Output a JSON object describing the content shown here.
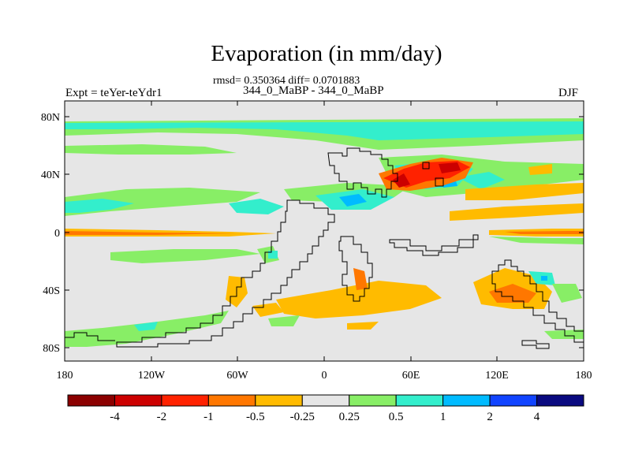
{
  "map": {
    "title": "Evaporation (in mm/day)",
    "rmsd_text": "rmsd= 0.350364 diff= 0.0701883",
    "subtitle": "344_0_MaBP - 344_0_MaBP",
    "left_label": "Expt = teYer-teYdr1",
    "season": "DJF",
    "y_tick_labels": [
      "80N",
      "40N",
      "0",
      "40S",
      "80S"
    ],
    "x_tick_labels": [
      "180",
      "120W",
      "60W",
      "0",
      "60E",
      "120E",
      "180"
    ]
  },
  "colorbar": {
    "labels": [
      "-4",
      "-2",
      "-1",
      "-0.5",
      "-0.25",
      "0.25",
      "0.5",
      "1",
      "2",
      "4"
    ],
    "colors": [
      "#8b0000",
      "#cc0000",
      "#ff2200",
      "#ff7700",
      "#ffbb00",
      "#e6e6e6",
      "#88ee66",
      "#33eecc",
      "#00bbff",
      "#1144ff",
      "#0a0a80"
    ]
  }
}
